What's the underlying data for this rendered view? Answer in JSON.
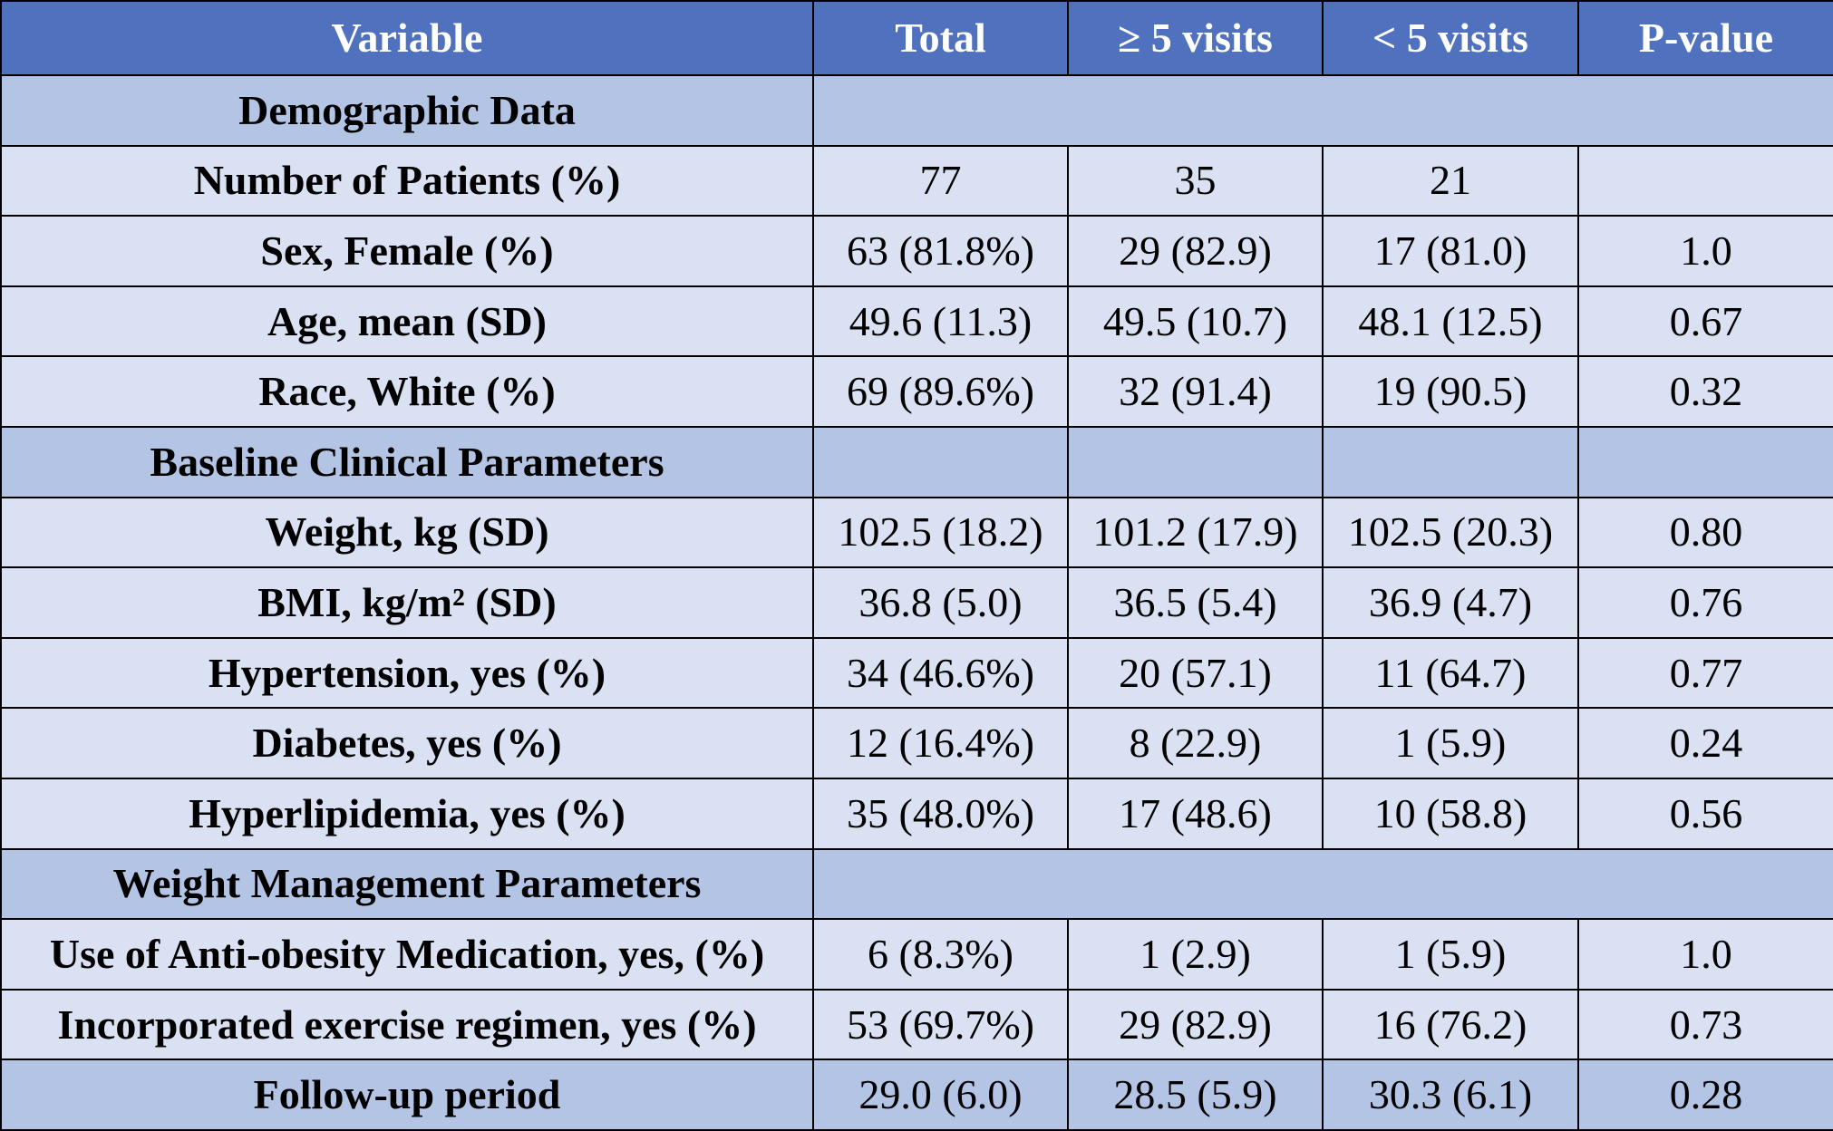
{
  "header": [
    "Variable",
    "Total",
    "≥ 5 visits",
    "< 5 visits",
    "P-value"
  ],
  "rows": [
    {
      "type": "section",
      "cells": [
        "Demographic Data"
      ]
    },
    {
      "type": "body",
      "cells": [
        "Number of Patients (%)",
        "77",
        "35",
        "21",
        ""
      ]
    },
    {
      "type": "body",
      "cells": [
        "Sex, Female (%)",
        "63 (81.8%)",
        "29 (82.9)",
        "17 (81.0)",
        "1.0"
      ]
    },
    {
      "type": "body",
      "cells": [
        "Age, mean (SD)",
        "49.6 (11.3)",
        "49.5 (10.7)",
        "48.1 (12.5)",
        "0.67"
      ]
    },
    {
      "type": "body",
      "cells": [
        "Race, White (%)",
        "69 (89.6%)",
        "32 (91.4)",
        "19 (90.5)",
        "0.32"
      ]
    },
    {
      "type": "section4",
      "cells": [
        "Baseline Clinical Parameters",
        "",
        "",
        "",
        ""
      ]
    },
    {
      "type": "body",
      "cells": [
        "Weight, kg (SD)",
        "102.5 (18.2)",
        "101.2 (17.9)",
        "102.5 (20.3)",
        "0.80"
      ]
    },
    {
      "type": "body",
      "cells": [
        "BMI, kg/m² (SD)",
        "36.8 (5.0)",
        "36.5 (5.4)",
        "36.9 (4.7)",
        "0.76"
      ]
    },
    {
      "type": "body",
      "cells": [
        "Hypertension, yes (%)",
        "34 (46.6%)",
        "20 (57.1)",
        "11 (64.7)",
        "0.77"
      ]
    },
    {
      "type": "body",
      "cells": [
        "Diabetes, yes (%)",
        "12 (16.4%)",
        "8 (22.9)",
        "1 (5.9)",
        "0.24"
      ]
    },
    {
      "type": "body",
      "cells": [
        "Hyperlipidemia, yes (%)",
        "35 (48.0%)",
        "17 (48.6)",
        "10 (58.8)",
        "0.56"
      ]
    },
    {
      "type": "section",
      "cells": [
        "Weight Management Parameters"
      ]
    },
    {
      "type": "body",
      "cells": [
        "Use of Anti-obesity Medication, yes, (%)",
        "6 (8.3%)",
        "1 (2.9)",
        "1 (5.9)",
        "1.0"
      ]
    },
    {
      "type": "body",
      "cells": [
        "Incorporated exercise regimen, yes (%)",
        "53 (69.7%)",
        "29 (82.9)",
        "16 (76.2)",
        "0.73"
      ]
    },
    {
      "type": "footer",
      "cells": [
        "Follow-up period",
        "29.0 (6.0)",
        "28.5 (5.9)",
        "30.3 (6.1)",
        "0.28"
      ]
    }
  ]
}
